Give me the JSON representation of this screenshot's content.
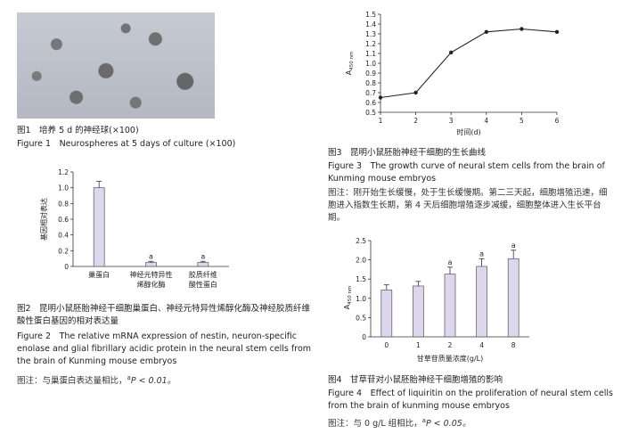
{
  "fig1": {
    "caption_zh": "图1　培养 5 d 的神经球(×100)",
    "caption_en": "Figure 1　Neurospheres at 5 days of culture (×100)"
  },
  "fig2": {
    "caption_zh": "图2　昆明小鼠胚胎神经干细胞巢蛋白、神经元特异性烯醇化酶及神经胶质纤维酸性蛋白基因的相对表达量",
    "caption_en": "Figure 2　The relative mRNA expression of nestin, neuron-specific enolase and glial fibrillary acidic protein in the neural stem cells from the brain of Kunming mouse embryos",
    "note_prefix": "图注：与巢蛋白表达量相比，",
    "note_sup": "a",
    "note_p": "P < 0.01。"
  },
  "fig3": {
    "caption_zh": "图3　昆明小鼠胚胎神经干细胞的生长曲线",
    "caption_en": "Figure 3　The growth curve of neural stem cells from the brain of Kunming mouse embryos",
    "note": "图注：刚开始生长缓慢，处于生长缓慢期。第二三天起，细胞增殖迅速，细胞进入指数生长期，第 4 天后细胞增殖逐步减缓，细胞整体进入生长平台期。"
  },
  "fig4": {
    "caption_zh": "图4　甘草苷对小鼠胚胎神经干细胞增殖的影响",
    "caption_en": "Figure 4　Effect of liquiritin on the proliferation of neural stem cells from the brain of kunming mouse embryos",
    "note_prefix": "图注：与 0 g/L 组相比，",
    "note_sup": "a",
    "note_p": "P < 0.05。"
  },
  "chart_data": [
    {
      "type": "bar",
      "categories": [
        "巢蛋白",
        "神经元特异性烯醇化酶",
        "胶质纤维酸性蛋白"
      ],
      "category_lines": [
        [
          "巢蛋白"
        ],
        [
          "神经元特异性",
          "烯醇化酶"
        ],
        [
          "胶质纤维",
          "酸性蛋白"
        ]
      ],
      "values": [
        1.0,
        0.05,
        0.05
      ],
      "errors": [
        0.08,
        0.015,
        0.015
      ],
      "markers": [
        "",
        "a",
        "a"
      ],
      "ylabel": "基因相对表达",
      "ylim": [
        0,
        1.2
      ],
      "yticks": [
        "0",
        "0.2",
        "0.4",
        "0.6",
        "0.8",
        "1.0",
        "1.2"
      ]
    },
    {
      "type": "line",
      "x": [
        1,
        2,
        3,
        4,
        5,
        6
      ],
      "y": [
        0.65,
        0.7,
        1.11,
        1.32,
        1.35,
        1.32
      ],
      "xlabel": "时间(d)",
      "ylabel": "A",
      "ylabel_sub": "450 nm",
      "xlim": [
        1,
        6
      ],
      "ylim": [
        0.5,
        1.5
      ],
      "yticks": [
        "0.5",
        "0.6",
        "0.7",
        "0.8",
        "0.9",
        "1.0",
        "1.1",
        "1.2",
        "1.3",
        "1.4",
        "1.5"
      ],
      "xticks": [
        "1",
        "2",
        "3",
        "4",
        "5",
        "6"
      ]
    },
    {
      "type": "bar",
      "categories": [
        "0",
        "1",
        "2",
        "4",
        "8"
      ],
      "values": [
        1.22,
        1.32,
        1.63,
        1.83,
        2.03
      ],
      "errors": [
        0.13,
        0.12,
        0.18,
        0.2,
        0.22
      ],
      "markers": [
        "",
        "",
        "a",
        "a",
        "a"
      ],
      "xlabel": "甘草苷质量浓度(g/L)",
      "ylabel": "A",
      "ylabel_sub": "450 nm",
      "ylim": [
        0,
        2.5
      ],
      "yticks": [
        "0",
        "0.5",
        "1.0",
        "1.5",
        "2.0",
        "2.5"
      ]
    }
  ]
}
